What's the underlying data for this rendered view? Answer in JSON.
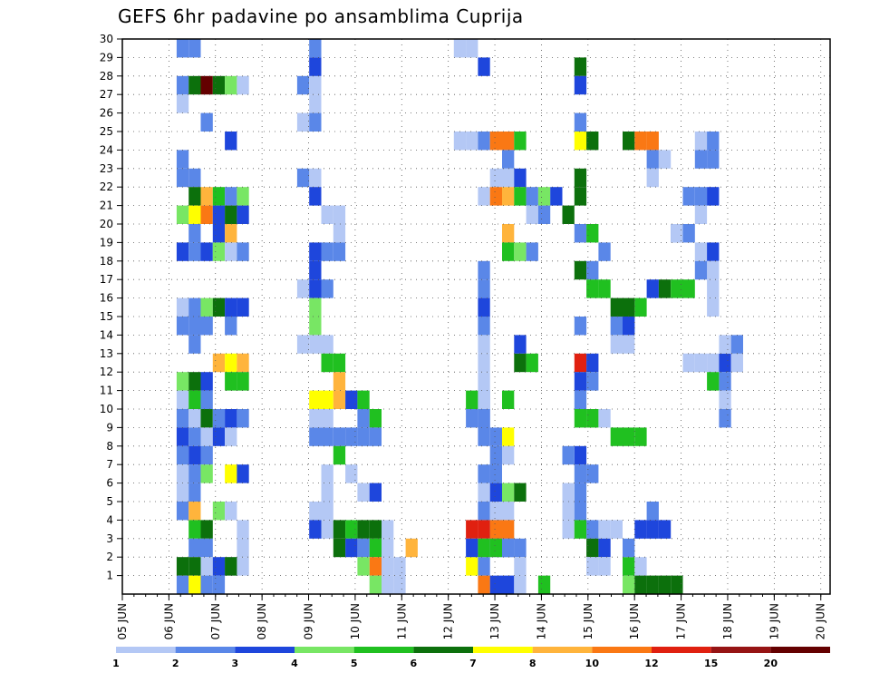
{
  "chart_data": {
    "type": "heatmap",
    "title": "GEFS 6hr padavine po ansamblima Cuprija",
    "x_tick_labels": [
      "05 JUN",
      "06 JUN",
      "07 JUN",
      "08 JUN",
      "09 JUN",
      "10 JUN",
      "11 JUN",
      "12 JUN",
      "13 JUN",
      "14 JUN",
      "15 JUN",
      "16 JUN",
      "17 JUN",
      "18 JUN",
      "19 JUN",
      "20 JUN"
    ],
    "y_tick_labels": [
      "1",
      "2",
      "3",
      "4",
      "5",
      "6",
      "7",
      "8",
      "9",
      "10",
      "11",
      "12",
      "13",
      "14",
      "15",
      "16",
      "17",
      "18",
      "19",
      "20",
      "21",
      "22",
      "23",
      "24",
      "25",
      "26",
      "27",
      "28",
      "29",
      "30"
    ],
    "ylim": [
      0,
      30
    ],
    "grid": "dotted",
    "colorbar": {
      "levels": [
        "1",
        "2",
        "3",
        "4",
        "5",
        "6",
        "7",
        "8",
        "10",
        "12",
        "15",
        "20"
      ],
      "colors": [
        "#b4c8f5",
        "#5a87e8",
        "#1e46dc",
        "#78e664",
        "#20c020",
        "#0c700c",
        "#ffff00",
        "#ffb43c",
        "#fa7814",
        "#e02010",
        "#961414",
        "#640000"
      ]
    },
    "cells_note": "each cell: [day_offset_from_05_JUN_in_6h_steps, member, color_index]",
    "cells": [
      [
        3,
        29,
        1
      ],
      [
        4,
        29,
        1
      ],
      [
        3,
        27,
        1
      ],
      [
        4,
        27,
        5
      ],
      [
        5,
        27,
        11
      ],
      [
        6,
        27,
        5
      ],
      [
        7,
        27,
        3
      ],
      [
        8,
        27,
        0
      ],
      [
        3,
        26,
        0
      ],
      [
        5,
        25,
        1
      ],
      [
        7,
        24,
        2
      ],
      [
        3,
        23,
        1
      ],
      [
        4,
        22,
        1
      ],
      [
        3,
        22,
        1
      ],
      [
        4,
        21,
        5
      ],
      [
        5,
        21,
        7
      ],
      [
        6,
        21,
        4
      ],
      [
        7,
        21,
        1
      ],
      [
        8,
        21,
        3
      ],
      [
        4,
        20,
        6
      ],
      [
        5,
        20,
        8
      ],
      [
        6,
        20,
        2
      ],
      [
        7,
        20,
        5
      ],
      [
        8,
        20,
        2
      ],
      [
        3,
        20,
        3
      ],
      [
        4,
        19,
        1
      ],
      [
        6,
        19,
        2
      ],
      [
        7,
        19,
        7
      ],
      [
        3,
        18,
        2
      ],
      [
        4,
        18,
        1
      ],
      [
        5,
        18,
        2
      ],
      [
        6,
        18,
        3
      ],
      [
        7,
        18,
        0
      ],
      [
        8,
        18,
        1
      ],
      [
        3,
        15,
        0
      ],
      [
        4,
        15,
        1
      ],
      [
        5,
        15,
        3
      ],
      [
        6,
        15,
        5
      ],
      [
        7,
        15,
        2
      ],
      [
        8,
        15,
        2
      ],
      [
        3,
        14,
        1
      ],
      [
        4,
        14,
        1
      ],
      [
        5,
        14,
        1
      ],
      [
        7,
        14,
        1
      ],
      [
        4,
        13,
        1
      ],
      [
        6,
        12,
        7
      ],
      [
        7,
        12,
        6
      ],
      [
        8,
        12,
        7
      ],
      [
        3,
        11,
        3
      ],
      [
        4,
        11,
        5
      ],
      [
        5,
        11,
        2
      ],
      [
        7,
        11,
        4
      ],
      [
        8,
        11,
        4
      ],
      [
        3,
        10,
        0
      ],
      [
        4,
        10,
        4
      ],
      [
        5,
        10,
        1
      ],
      [
        3,
        9,
        1
      ],
      [
        4,
        9,
        0
      ],
      [
        5,
        9,
        5
      ],
      [
        6,
        9,
        1
      ],
      [
        7,
        9,
        2
      ],
      [
        8,
        9,
        1
      ],
      [
        3,
        8,
        2
      ],
      [
        4,
        8,
        1
      ],
      [
        5,
        8,
        0
      ],
      [
        6,
        8,
        2
      ],
      [
        7,
        8,
        0
      ],
      [
        3,
        7,
        1
      ],
      [
        4,
        7,
        2
      ],
      [
        5,
        7,
        1
      ],
      [
        3,
        6,
        0
      ],
      [
        4,
        6,
        1
      ],
      [
        5,
        6,
        3
      ],
      [
        7,
        6,
        6
      ],
      [
        8,
        6,
        2
      ],
      [
        3,
        5,
        0
      ],
      [
        4,
        5,
        1
      ],
      [
        3,
        4,
        1
      ],
      [
        4,
        4,
        7
      ],
      [
        6,
        4,
        3
      ],
      [
        7,
        4,
        0
      ],
      [
        4,
        3,
        4
      ],
      [
        5,
        3,
        5
      ],
      [
        4,
        2,
        1
      ],
      [
        5,
        2,
        1
      ],
      [
        3,
        1,
        5
      ],
      [
        4,
        1,
        5
      ],
      [
        5,
        1,
        0
      ],
      [
        7,
        1,
        0
      ],
      [
        8,
        1,
        0
      ],
      [
        3,
        0,
        1
      ],
      [
        4,
        0,
        6
      ],
      [
        6,
        1,
        2
      ],
      [
        7,
        1,
        5
      ],
      [
        8,
        2,
        0
      ],
      [
        8,
        3,
        0
      ],
      [
        5,
        0,
        1
      ],
      [
        6,
        0,
        1
      ],
      [
        13,
        27,
        1
      ],
      [
        14,
        27,
        0
      ],
      [
        14,
        28,
        2
      ],
      [
        14,
        29,
        1
      ],
      [
        14,
        26,
        0
      ],
      [
        13,
        25,
        0
      ],
      [
        14,
        25,
        1
      ],
      [
        14,
        22,
        0
      ],
      [
        13,
        22,
        1
      ],
      [
        14,
        21,
        2
      ],
      [
        15,
        20,
        0
      ],
      [
        16,
        20,
        0
      ],
      [
        16,
        19,
        0
      ],
      [
        16,
        18,
        1
      ],
      [
        14,
        18,
        2
      ],
      [
        15,
        18,
        1
      ],
      [
        14,
        17,
        2
      ],
      [
        13,
        16,
        0
      ],
      [
        14,
        16,
        2
      ],
      [
        15,
        16,
        1
      ],
      [
        14,
        15,
        3
      ],
      [
        14,
        14,
        3
      ],
      [
        13,
        13,
        0
      ],
      [
        14,
        13,
        0
      ],
      [
        15,
        13,
        0
      ],
      [
        15,
        12,
        4
      ],
      [
        16,
        12,
        4
      ],
      [
        16,
        11,
        7
      ],
      [
        14,
        10,
        6
      ],
      [
        15,
        10,
        6
      ],
      [
        16,
        10,
        7
      ],
      [
        17,
        10,
        2
      ],
      [
        18,
        10,
        4
      ],
      [
        18,
        9,
        1
      ],
      [
        19,
        9,
        4
      ],
      [
        14,
        8,
        1
      ],
      [
        15,
        8,
        1
      ],
      [
        16,
        8,
        1
      ],
      [
        17,
        8,
        1
      ],
      [
        18,
        8,
        1
      ],
      [
        19,
        8,
        1
      ],
      [
        16,
        7,
        4
      ],
      [
        15,
        9,
        0
      ],
      [
        14,
        9,
        0
      ],
      [
        15,
        6,
        0
      ],
      [
        15,
        5,
        0
      ],
      [
        14,
        4,
        0
      ],
      [
        15,
        4,
        0
      ],
      [
        17,
        6,
        0
      ],
      [
        18,
        5,
        0
      ],
      [
        19,
        5,
        2
      ],
      [
        14,
        3,
        2
      ],
      [
        15,
        3,
        0
      ],
      [
        16,
        3,
        5
      ],
      [
        17,
        3,
        4
      ],
      [
        18,
        3,
        5
      ],
      [
        19,
        3,
        5
      ],
      [
        20,
        3,
        0
      ],
      [
        16,
        2,
        5
      ],
      [
        17,
        2,
        2
      ],
      [
        18,
        2,
        1
      ],
      [
        19,
        2,
        4
      ],
      [
        20,
        2,
        0
      ],
      [
        19,
        1,
        8
      ],
      [
        21,
        0,
        0
      ],
      [
        19,
        0,
        3
      ],
      [
        18,
        1,
        3
      ],
      [
        20,
        1,
        0
      ],
      [
        20,
        0,
        0
      ],
      [
        21,
        1,
        0
      ],
      [
        22,
        2,
        7
      ],
      [
        26,
        29,
        0
      ],
      [
        27,
        29,
        0
      ],
      [
        28,
        28,
        2
      ],
      [
        26,
        24,
        0
      ],
      [
        27,
        24,
        0
      ],
      [
        28,
        24,
        1
      ],
      [
        29,
        24,
        8
      ],
      [
        30,
        24,
        8
      ],
      [
        31,
        24,
        4
      ],
      [
        30,
        23,
        1
      ],
      [
        29,
        22,
        0
      ],
      [
        30,
        22,
        0
      ],
      [
        31,
        22,
        2
      ],
      [
        28,
        21,
        0
      ],
      [
        29,
        21,
        8
      ],
      [
        30,
        21,
        7
      ],
      [
        31,
        21,
        4
      ],
      [
        32,
        21,
        1
      ],
      [
        33,
        21,
        3
      ],
      [
        34,
        21,
        2
      ],
      [
        32,
        20,
        0
      ],
      [
        33,
        20,
        1
      ],
      [
        30,
        19,
        7
      ],
      [
        30,
        18,
        4
      ],
      [
        31,
        18,
        3
      ],
      [
        32,
        18,
        1
      ],
      [
        28,
        17,
        1
      ],
      [
        28,
        16,
        1
      ],
      [
        28,
        15,
        2
      ],
      [
        28,
        14,
        1
      ],
      [
        28,
        13,
        0
      ],
      [
        28,
        12,
        0
      ],
      [
        28,
        11,
        0
      ],
      [
        28,
        10,
        1
      ],
      [
        28,
        9,
        1
      ],
      [
        30,
        8,
        6
      ],
      [
        30,
        7,
        0
      ],
      [
        28,
        6,
        1
      ],
      [
        29,
        6,
        1
      ],
      [
        28,
        5,
        0
      ],
      [
        29,
        5,
        2
      ],
      [
        30,
        5,
        3
      ],
      [
        31,
        5,
        5
      ],
      [
        28,
        4,
        1
      ],
      [
        29,
        4,
        0
      ],
      [
        30,
        4,
        0
      ],
      [
        29,
        3,
        2
      ],
      [
        30,
        3,
        0
      ],
      [
        29,
        2,
        1
      ],
      [
        30,
        2,
        1
      ],
      [
        27,
        1,
        6
      ],
      [
        28,
        1,
        1
      ],
      [
        28,
        0,
        8
      ],
      [
        29,
        0,
        2
      ],
      [
        30,
        0,
        2
      ],
      [
        31,
        0,
        0
      ],
      [
        33,
        0,
        4
      ],
      [
        27,
        10,
        4
      ],
      [
        28,
        10,
        0
      ],
      [
        30,
        10,
        4
      ],
      [
        28,
        8,
        1
      ],
      [
        29,
        8,
        1
      ],
      [
        27,
        3,
        9
      ],
      [
        28,
        3,
        9
      ],
      [
        29,
        3,
        8
      ],
      [
        30,
        3,
        8
      ],
      [
        27,
        2,
        2
      ],
      [
        28,
        2,
        4
      ],
      [
        29,
        2,
        4
      ],
      [
        30,
        2,
        1
      ],
      [
        31,
        2,
        1
      ],
      [
        29,
        7,
        1
      ],
      [
        29,
        6,
        1
      ],
      [
        27,
        9,
        1
      ],
      [
        28,
        9,
        1
      ],
      [
        31,
        1,
        0
      ],
      [
        31,
        12,
        5
      ],
      [
        32,
        12,
        4
      ],
      [
        31,
        13,
        2
      ],
      [
        36,
        28,
        5
      ],
      [
        36,
        27,
        2
      ],
      [
        36,
        25,
        1
      ],
      [
        36,
        24,
        6
      ],
      [
        37,
        24,
        5
      ],
      [
        36,
        22,
        5
      ],
      [
        36,
        21,
        5
      ],
      [
        35,
        20,
        5
      ],
      [
        36,
        19,
        1
      ],
      [
        37,
        19,
        4
      ],
      [
        36,
        17,
        5
      ],
      [
        37,
        17,
        1
      ],
      [
        38,
        18,
        1
      ],
      [
        37,
        16,
        4
      ],
      [
        38,
        16,
        4
      ],
      [
        36,
        14,
        1
      ],
      [
        36,
        12,
        9
      ],
      [
        37,
        12,
        2
      ],
      [
        37,
        11,
        1
      ],
      [
        36,
        11,
        2
      ],
      [
        36,
        10,
        1
      ],
      [
        36,
        9,
        4
      ],
      [
        37,
        9,
        4
      ],
      [
        38,
        9,
        0
      ],
      [
        36,
        7,
        2
      ],
      [
        35,
        7,
        1
      ],
      [
        36,
        6,
        1
      ],
      [
        37,
        6,
        1
      ],
      [
        36,
        5,
        1
      ],
      [
        35,
        5,
        0
      ],
      [
        35,
        4,
        0
      ],
      [
        36,
        4,
        1
      ],
      [
        35,
        3,
        0
      ],
      [
        36,
        3,
        4
      ],
      [
        37,
        3,
        1
      ],
      [
        38,
        3,
        0
      ],
      [
        39,
        3,
        0
      ],
      [
        37,
        2,
        5
      ],
      [
        38,
        2,
        2
      ],
      [
        37,
        1,
        0
      ],
      [
        38,
        1,
        0
      ],
      [
        40,
        1,
        4
      ],
      [
        41,
        1,
        0
      ],
      [
        40,
        2,
        1
      ],
      [
        40,
        0,
        3
      ],
      [
        41,
        0,
        5
      ],
      [
        42,
        0,
        5
      ],
      [
        43,
        0,
        5
      ],
      [
        44,
        0,
        5
      ],
      [
        41,
        3,
        2
      ],
      [
        42,
        3,
        2
      ],
      [
        42,
        4,
        1
      ],
      [
        43,
        3,
        2
      ],
      [
        39,
        8,
        4
      ],
      [
        40,
        8,
        4
      ],
      [
        41,
        8,
        4
      ],
      [
        39,
        14,
        1
      ],
      [
        40,
        14,
        1
      ],
      [
        41,
        15,
        4
      ],
      [
        40,
        15,
        5
      ],
      [
        39,
        15,
        5
      ],
      [
        42,
        16,
        2
      ],
      [
        43,
        16,
        5
      ],
      [
        44,
        16,
        4
      ],
      [
        45,
        16,
        4
      ],
      [
        44,
        19,
        1
      ],
      [
        45,
        19,
        1
      ],
      [
        46,
        18,
        0
      ],
      [
        46,
        21,
        1
      ],
      [
        47,
        21,
        2
      ],
      [
        46,
        23,
        1
      ],
      [
        47,
        23,
        1
      ],
      [
        46,
        24,
        0
      ],
      [
        47,
        24,
        1
      ],
      [
        40,
        24,
        5
      ],
      [
        41,
        24,
        8
      ],
      [
        42,
        24,
        8
      ],
      [
        42,
        23,
        1
      ],
      [
        43,
        23,
        0
      ],
      [
        42,
        22,
        0
      ],
      [
        45,
        21,
        1
      ],
      [
        46,
        20,
        0
      ],
      [
        44,
        19,
        0
      ],
      [
        47,
        18,
        2
      ],
      [
        47,
        17,
        0
      ],
      [
        46,
        17,
        1
      ],
      [
        47,
        16,
        0
      ],
      [
        47,
        15,
        0
      ],
      [
        40,
        14,
        2
      ],
      [
        39,
        13,
        0
      ],
      [
        40,
        13,
        0
      ],
      [
        45,
        12,
        0
      ],
      [
        46,
        12,
        0
      ],
      [
        47,
        12,
        0
      ],
      [
        48,
        12,
        2
      ],
      [
        49,
        12,
        0
      ],
      [
        48,
        11,
        1
      ],
      [
        47,
        11,
        4
      ],
      [
        48,
        9,
        1
      ],
      [
        48,
        10,
        0
      ],
      [
        48,
        13,
        0
      ],
      [
        49,
        13,
        1
      ]
    ]
  }
}
